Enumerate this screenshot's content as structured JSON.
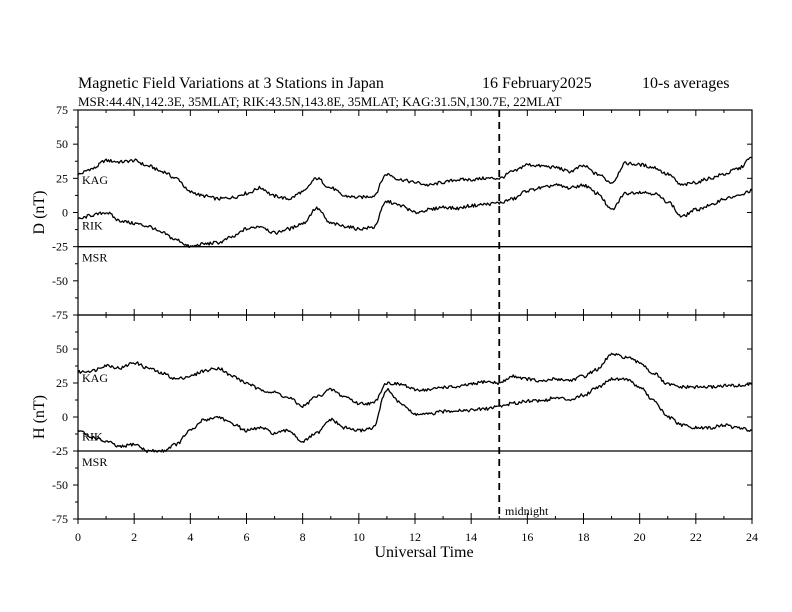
{
  "header": {
    "title": "Magnetic Field Variations at 3 Stations in Japan",
    "date": "16 February2025",
    "averaging": "10-s averages",
    "stations_line": "MSR:44.4N,142.3E, 35MLAT;  RIK:43.5N,143.8E, 35MLAT;  KAG:31.5N,130.7E, 22MLAT"
  },
  "annotation": {
    "midnight_label": "midnight",
    "midnight_x": 15
  },
  "chart_data": [
    {
      "type": "line",
      "panel": "D",
      "ylabel": "D (nT)",
      "xlim": [
        0,
        24
      ],
      "ylim": [
        -75,
        75
      ],
      "yticks": [
        75,
        50,
        25,
        0,
        -25,
        -50,
        -75
      ],
      "x": [
        0,
        0.5,
        1,
        1.5,
        2,
        2.5,
        3,
        3.5,
        4,
        4.5,
        5,
        5.5,
        6,
        6.5,
        7,
        7.5,
        8,
        8.5,
        9,
        9.5,
        10,
        10.5,
        11,
        11.5,
        12,
        12.5,
        13,
        13.5,
        14,
        14.5,
        15,
        15.5,
        16,
        16.5,
        17,
        17.5,
        18,
        18.5,
        19,
        19.5,
        20,
        20.5,
        21,
        21.5,
        22,
        22.5,
        23,
        23.5,
        24
      ],
      "series": [
        {
          "name": "KAG",
          "values": [
            28,
            32,
            38,
            37,
            38,
            34,
            30,
            25,
            15,
            12,
            10,
            11,
            14,
            18,
            12,
            10,
            15,
            25,
            18,
            12,
            11,
            12,
            28,
            24,
            22,
            20,
            22,
            24,
            24,
            25,
            25,
            30,
            35,
            34,
            33,
            30,
            34,
            28,
            22,
            36,
            35,
            33,
            28,
            20,
            22,
            25,
            28,
            32,
            40
          ]
        },
        {
          "name": "RIK",
          "values": [
            -5,
            -2,
            0,
            -6,
            -8,
            -10,
            -15,
            -20,
            -25,
            -23,
            -22,
            -18,
            -12,
            -10,
            -15,
            -12,
            -8,
            3,
            -8,
            -10,
            -12,
            -11,
            8,
            5,
            0,
            2,
            4,
            3,
            5,
            6,
            7,
            10,
            16,
            18,
            20,
            18,
            20,
            14,
            2,
            14,
            15,
            14,
            8,
            -3,
            2,
            5,
            10,
            12,
            16
          ]
        },
        {
          "name": "MSR",
          "values": [
            -25,
            -25,
            -25,
            -25,
            -25,
            -25,
            -25,
            -25,
            -25,
            -25,
            -25,
            -25,
            -25,
            -25,
            -25,
            -25,
            -25,
            -25,
            -25,
            -25,
            -25,
            -25,
            -25,
            -25,
            -25,
            -25,
            -25,
            -25,
            -25,
            -25,
            -25,
            -25,
            -25,
            -25,
            -25,
            -25,
            -25,
            -25,
            -25,
            -25,
            -25,
            -25,
            -25,
            -25,
            -25,
            -25,
            -25,
            -25,
            -25
          ]
        }
      ]
    },
    {
      "type": "line",
      "panel": "H",
      "ylabel": "H (nT)",
      "xlabel": "Universal Time",
      "xlim": [
        0,
        24
      ],
      "ylim": [
        -75,
        75
      ],
      "xticks": [
        0,
        2,
        4,
        6,
        8,
        10,
        12,
        14,
        16,
        18,
        20,
        22,
        24
      ],
      "yticks": [
        50,
        25,
        0,
        -25,
        -50,
        -75
      ],
      "x": [
        0,
        0.5,
        1,
        1.5,
        2,
        2.5,
        3,
        3.5,
        4,
        4.5,
        5,
        5.5,
        6,
        6.5,
        7,
        7.5,
        8,
        8.5,
        9,
        9.5,
        10,
        10.5,
        11,
        11.5,
        12,
        12.5,
        13,
        13.5,
        14,
        14.5,
        15,
        15.5,
        16,
        16.5,
        17,
        17.5,
        18,
        18.5,
        19,
        19.5,
        20,
        20.5,
        21,
        21.5,
        22,
        22.5,
        23,
        23.5,
        24
      ],
      "series": [
        {
          "name": "KAG",
          "values": [
            33,
            34,
            38,
            36,
            40,
            36,
            32,
            28,
            30,
            34,
            36,
            30,
            25,
            20,
            18,
            14,
            8,
            15,
            20,
            15,
            10,
            10,
            25,
            24,
            20,
            20,
            22,
            22,
            24,
            26,
            25,
            30,
            28,
            26,
            28,
            27,
            30,
            35,
            46,
            44,
            40,
            32,
            24,
            22,
            22,
            22,
            23,
            23,
            24
          ]
        },
        {
          "name": "RIK",
          "values": [
            -10,
            -15,
            -18,
            -22,
            -20,
            -25,
            -25,
            -20,
            -10,
            -2,
            0,
            -5,
            -10,
            -8,
            -12,
            -10,
            -18,
            -12,
            -2,
            -8,
            -10,
            -8,
            20,
            10,
            2,
            2,
            4,
            5,
            5,
            6,
            8,
            10,
            12,
            12,
            14,
            13,
            16,
            22,
            28,
            28,
            22,
            12,
            0,
            -6,
            -8,
            -8,
            -6,
            -8,
            -10
          ]
        },
        {
          "name": "MSR",
          "values": [
            -25,
            -25,
            -25,
            -25,
            -25,
            -25,
            -25,
            -25,
            -25,
            -25,
            -25,
            -25,
            -25,
            -25,
            -25,
            -25,
            -25,
            -25,
            -25,
            -25,
            -25,
            -25,
            -25,
            -25,
            -25,
            -25,
            -25,
            -25,
            -25,
            -25,
            -25,
            -25,
            -25,
            -25,
            -25,
            -25,
            -25,
            -25,
            -25,
            -25,
            -25,
            -25,
            -25,
            -25,
            -25,
            -25,
            -25,
            -25,
            -25
          ]
        }
      ]
    }
  ]
}
